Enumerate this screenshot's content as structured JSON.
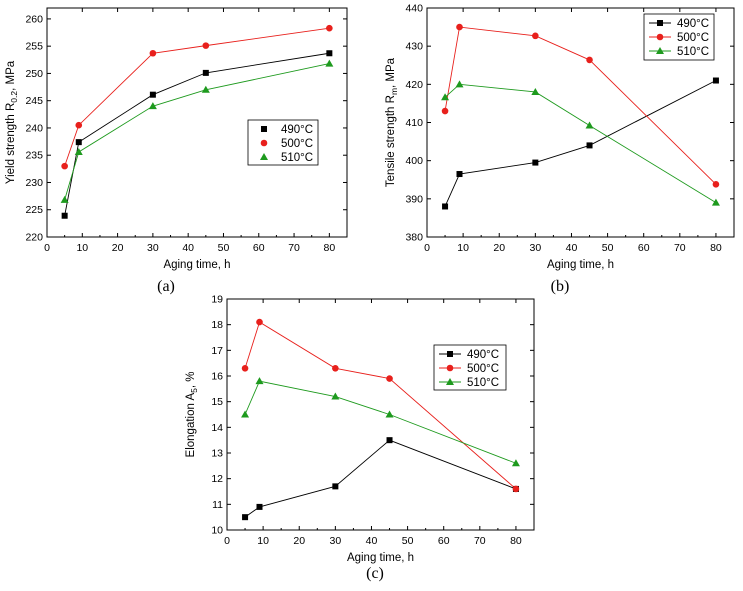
{
  "chart_data": [
    {
      "type": "line",
      "panel": "(a)",
      "xlabel": "Aging time, h",
      "ylabel": {
        "main": "Yield strength R",
        "sub": "0.2",
        "suffix": ", MPa"
      },
      "xlim": [
        0,
        85
      ],
      "ylim": [
        220,
        262
      ],
      "xticks": [
        0,
        10,
        20,
        30,
        40,
        50,
        60,
        70,
        80
      ],
      "yticks": [
        220,
        225,
        230,
        235,
        240,
        245,
        250,
        255,
        260
      ],
      "legend_position": "center-right",
      "series": [
        {
          "name": "490°C",
          "color": "#000000",
          "marker": "square",
          "x": [
            5,
            9,
            30,
            45,
            80
          ],
          "y": [
            223.9,
            237.4,
            246.1,
            250.1,
            253.7
          ]
        },
        {
          "name": "500°C",
          "color": "#e8201c",
          "marker": "circle",
          "x": [
            5,
            9,
            30,
            45,
            80
          ],
          "y": [
            233.0,
            240.5,
            253.7,
            255.1,
            258.3
          ]
        },
        {
          "name": "510°C",
          "color": "#1e9a1e",
          "marker": "triangle",
          "x": [
            5,
            9,
            30,
            45,
            80
          ],
          "y": [
            226.8,
            235.6,
            244.0,
            247.0,
            251.8
          ]
        }
      ]
    },
    {
      "type": "line",
      "panel": "(b)",
      "xlabel": "Aging time, h",
      "ylabel": {
        "main": "Tensile strength R",
        "sub": "m",
        "suffix": ", MPa"
      },
      "xlim": [
        0,
        85
      ],
      "ylim": [
        380,
        440
      ],
      "xticks": [
        0,
        10,
        20,
        30,
        40,
        50,
        60,
        70,
        80
      ],
      "yticks": [
        380,
        390,
        400,
        410,
        420,
        430,
        440
      ],
      "legend_position": "top-right",
      "series": [
        {
          "name": "490°C",
          "color": "#000000",
          "marker": "square",
          "x": [
            5,
            9,
            30,
            45,
            80
          ],
          "y": [
            388.0,
            396.5,
            399.5,
            404.0,
            421.0
          ]
        },
        {
          "name": "500°C",
          "color": "#e8201c",
          "marker": "circle",
          "x": [
            5,
            9,
            30,
            45,
            80
          ],
          "y": [
            413.0,
            435.0,
            432.7,
            426.4,
            393.8
          ]
        },
        {
          "name": "510°C",
          "color": "#1e9a1e",
          "marker": "triangle",
          "x": [
            5,
            9,
            30,
            45,
            80
          ],
          "y": [
            416.6,
            420.0,
            418.0,
            409.2,
            389.0
          ]
        }
      ]
    },
    {
      "type": "line",
      "panel": "(c)",
      "xlabel": "Aging time, h",
      "ylabel": {
        "main": "Elongation A",
        "sub": "5",
        "suffix": ", %"
      },
      "xlim": [
        0,
        85
      ],
      "ylim": [
        10,
        19
      ],
      "xticks": [
        0,
        10,
        20,
        30,
        40,
        50,
        60,
        70,
        80
      ],
      "yticks": [
        10,
        11,
        12,
        13,
        14,
        15,
        16,
        17,
        18,
        19
      ],
      "legend_position": "top-right",
      "series": [
        {
          "name": "490°C",
          "color": "#000000",
          "marker": "square",
          "x": [
            5,
            9,
            30,
            45,
            80
          ],
          "y": [
            10.5,
            10.9,
            11.7,
            13.5,
            11.6
          ]
        },
        {
          "name": "500°C",
          "color": "#e8201c",
          "marker": "circle",
          "x": [
            5,
            9,
            30,
            45,
            80
          ],
          "y": [
            16.3,
            18.1,
            16.3,
            15.9,
            11.6
          ]
        },
        {
          "name": "510°C",
          "color": "#1e9a1e",
          "marker": "triangle",
          "x": [
            5,
            9,
            30,
            45,
            80
          ],
          "y": [
            14.5,
            15.8,
            15.2,
            14.5,
            12.6
          ]
        }
      ]
    }
  ]
}
